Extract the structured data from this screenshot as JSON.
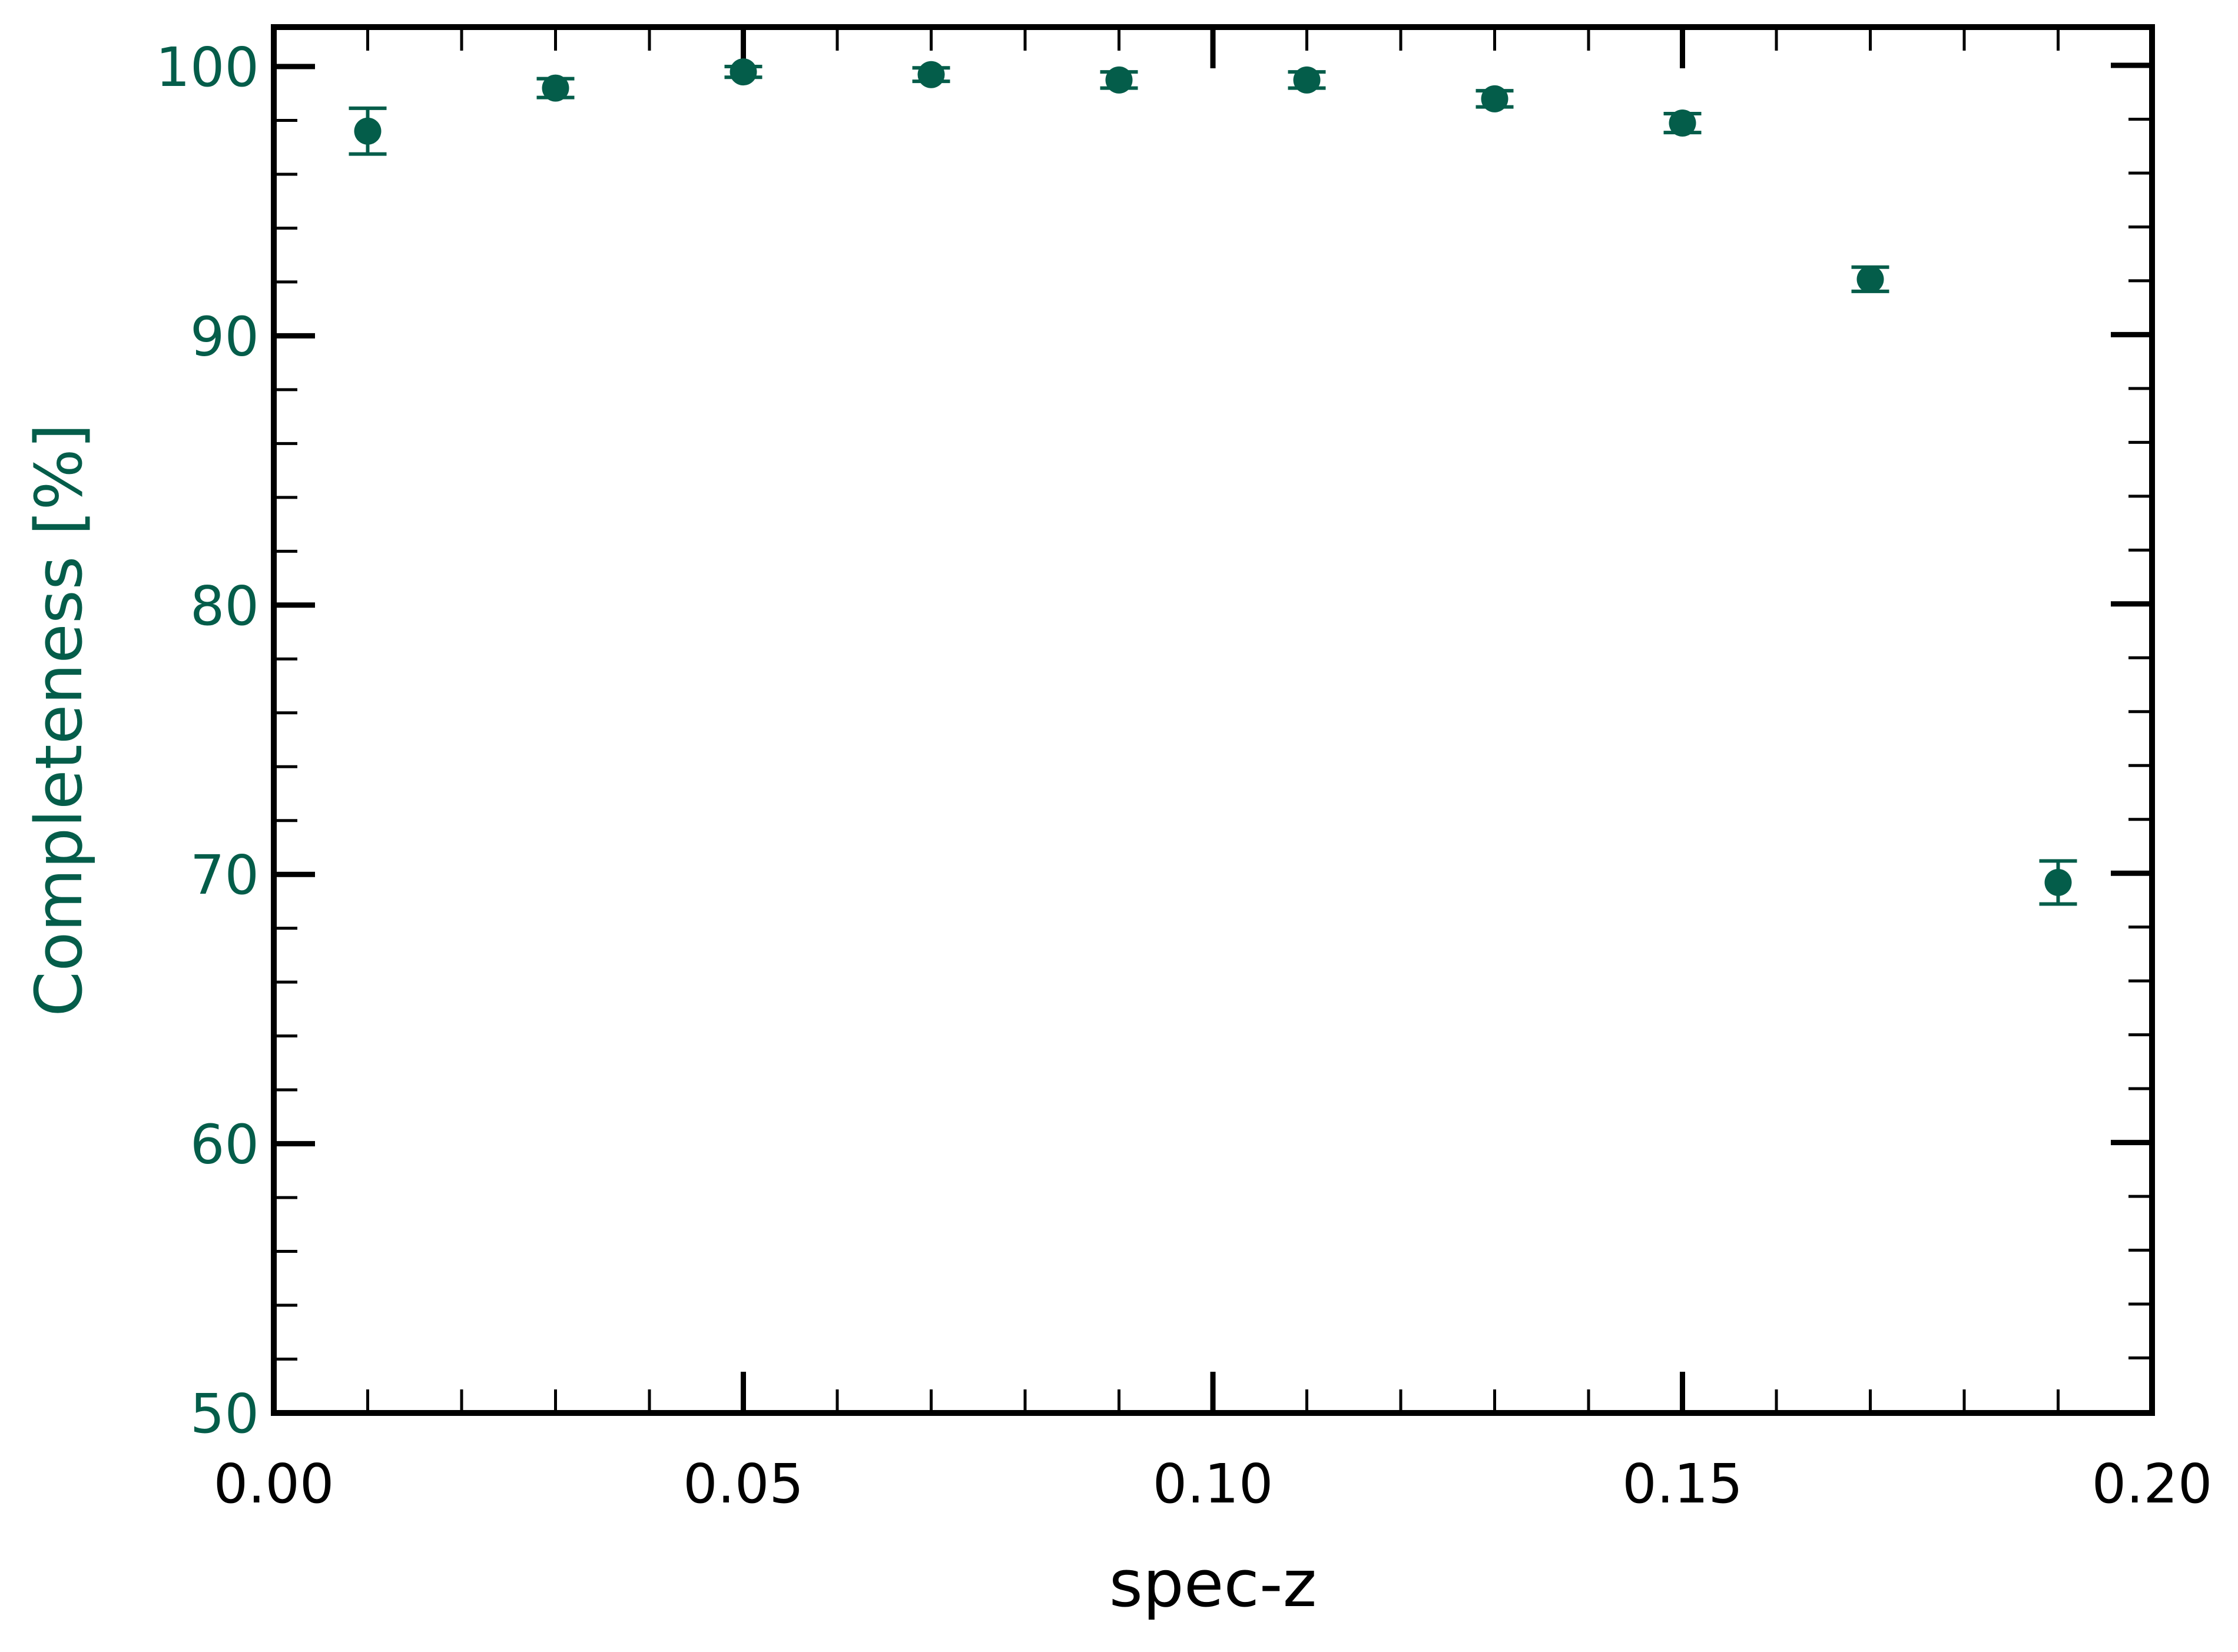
{
  "chart_data": {
    "type": "scatter",
    "title": "",
    "xlabel": "spec-z",
    "ylabel": "Completeness [%]",
    "xlim": [
      0.0,
      0.2
    ],
    "ylim": [
      50,
      100
    ],
    "x_ticks": [
      0.0,
      0.05,
      0.1,
      0.15,
      0.2
    ],
    "x_tick_labels": [
      "0.00",
      "0.05",
      "0.10",
      "0.15",
      "0.20"
    ],
    "left_y_ticks": [
      50,
      60,
      70,
      80,
      90,
      100
    ],
    "left_y_tick_labels": [
      "50",
      "60",
      "70",
      "80",
      "90",
      "100"
    ],
    "right_y_ticks": [
      60,
      70,
      80,
      90,
      100
    ],
    "grid": false,
    "legend": "none",
    "series": [
      {
        "x": [
          0.01,
          0.03,
          0.05,
          0.07,
          0.09,
          0.11,
          0.13,
          0.15,
          0.17,
          0.19
        ],
        "y": [
          97.6,
          99.2,
          99.8,
          99.7,
          99.5,
          99.5,
          98.8,
          97.9,
          92.1,
          69.7
        ],
        "yerr": [
          0.85,
          0.35,
          0.2,
          0.25,
          0.3,
          0.3,
          0.3,
          0.35,
          0.45,
          0.8
        ]
      }
    ],
    "colors": {
      "series": "#045d4a",
      "ylabel": "#045d4a",
      "left_ticks": "#045d4a",
      "axis": "#000000"
    }
  }
}
